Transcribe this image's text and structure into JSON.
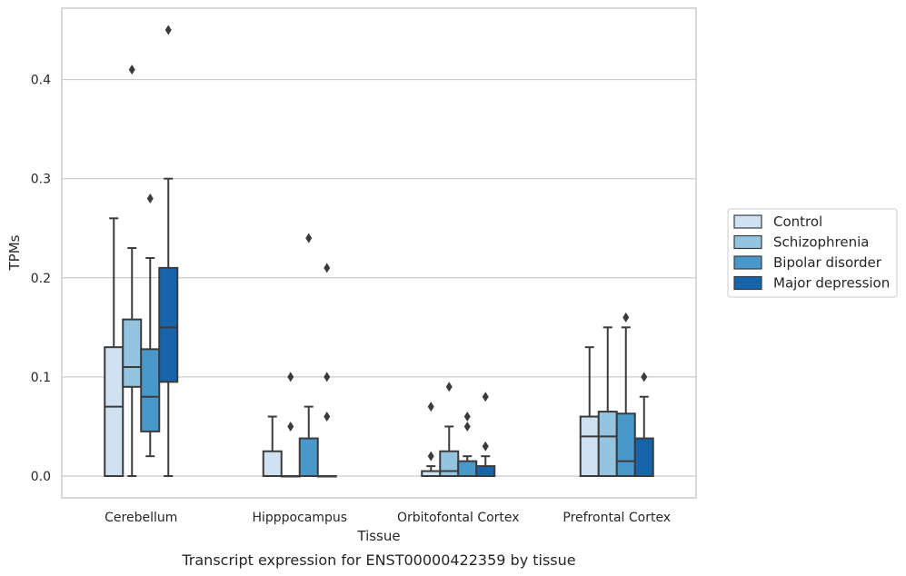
{
  "chart_data": {
    "type": "boxplot",
    "caption": "Transcript expression for ENST00000422359 by tissue",
    "xlabel": "Tissue",
    "ylabel": "TPMs",
    "ylim": [
      -0.022,
      0.472
    ],
    "yticks": [
      0.0,
      0.1,
      0.2,
      0.3,
      0.4
    ],
    "ytick_labels": [
      "0.0",
      "0.1",
      "0.2",
      "0.3",
      "0.4"
    ],
    "grid": "horizontal",
    "legend_position": "right",
    "categories": [
      "Cerebellum",
      "Hipppocampus",
      "Orbitofontal Cortex",
      "Prefrontal Cortex"
    ],
    "series": [
      {
        "name": "Control",
        "color": "#d0e1f2",
        "boxes": [
          {
            "q1": 0.0,
            "median": 0.07,
            "q3": 0.13,
            "whisker_low": 0.0,
            "whisker_high": 0.26,
            "outliers": []
          },
          {
            "q1": 0.0,
            "median": 0.0,
            "q3": 0.025,
            "whisker_low": 0.0,
            "whisker_high": 0.06,
            "outliers": []
          },
          {
            "q1": 0.0,
            "median": 0.0,
            "q3": 0.005,
            "whisker_low": 0.0,
            "whisker_high": 0.01,
            "outliers": [
              0.02,
              0.07
            ]
          },
          {
            "q1": 0.0,
            "median": 0.04,
            "q3": 0.06,
            "whisker_low": 0.0,
            "whisker_high": 0.13,
            "outliers": []
          }
        ]
      },
      {
        "name": "Schizophrenia",
        "color": "#94c4df",
        "boxes": [
          {
            "q1": 0.09,
            "median": 0.11,
            "q3": 0.158,
            "whisker_low": 0.0,
            "whisker_high": 0.23,
            "outliers": [
              0.41
            ]
          },
          {
            "q1": 0.0,
            "median": 0.0,
            "q3": 0.0,
            "whisker_low": 0.0,
            "whisker_high": 0.0,
            "outliers": [
              0.05,
              0.1
            ]
          },
          {
            "q1": 0.0,
            "median": 0.005,
            "q3": 0.025,
            "whisker_low": 0.0,
            "whisker_high": 0.05,
            "outliers": [
              0.09
            ]
          },
          {
            "q1": 0.0,
            "median": 0.04,
            "q3": 0.065,
            "whisker_low": 0.0,
            "whisker_high": 0.15,
            "outliers": []
          }
        ]
      },
      {
        "name": "Bipolar disorder",
        "color": "#4a98c9",
        "boxes": [
          {
            "q1": 0.045,
            "median": 0.08,
            "q3": 0.128,
            "whisker_low": 0.02,
            "whisker_high": 0.22,
            "outliers": [
              0.28
            ]
          },
          {
            "q1": 0.0,
            "median": 0.0,
            "q3": 0.038,
            "whisker_low": 0.0,
            "whisker_high": 0.07,
            "outliers": [
              0.24
            ]
          },
          {
            "q1": 0.0,
            "median": 0.0,
            "q3": 0.015,
            "whisker_low": 0.0,
            "whisker_high": 0.02,
            "outliers": [
              0.05,
              0.06
            ]
          },
          {
            "q1": 0.0,
            "median": 0.015,
            "q3": 0.063,
            "whisker_low": 0.0,
            "whisker_high": 0.15,
            "outliers": [
              0.16
            ]
          }
        ]
      },
      {
        "name": "Major depression",
        "color": "#1764ab",
        "boxes": [
          {
            "q1": 0.095,
            "median": 0.15,
            "q3": 0.21,
            "whisker_low": 0.0,
            "whisker_high": 0.3,
            "outliers": [
              0.45
            ]
          },
          {
            "q1": 0.0,
            "median": 0.0,
            "q3": 0.0,
            "whisker_low": 0.0,
            "whisker_high": 0.0,
            "outliers": [
              0.06,
              0.1,
              0.21
            ]
          },
          {
            "q1": 0.0,
            "median": 0.0,
            "q3": 0.01,
            "whisker_low": 0.0,
            "whisker_high": 0.02,
            "outliers": [
              0.03,
              0.08
            ]
          },
          {
            "q1": 0.0,
            "median": 0.0,
            "q3": 0.038,
            "whisker_low": 0.0,
            "whisker_high": 0.08,
            "outliers": [
              0.1
            ]
          }
        ]
      }
    ]
  }
}
